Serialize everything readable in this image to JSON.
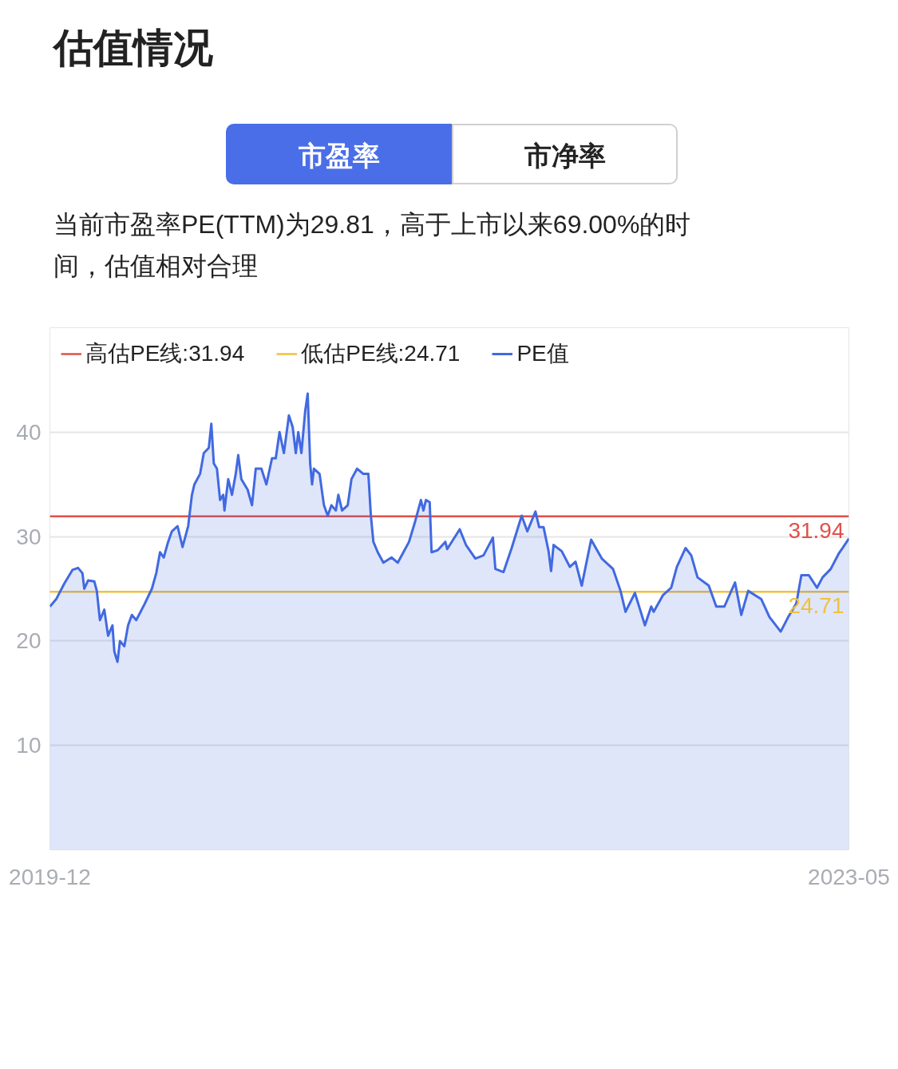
{
  "chart_data": {
    "type": "area",
    "title": "估值情况",
    "subtitle": "当前市盈率PE(TTM)为29.81，高于上市以来69.00%的时间，估值相对合理",
    "annotations": [
      "市盈率",
      "市净率",
      {
        "text": "31.94",
        "x": "2023-05-31",
        "y": 31.94
      },
      {
        "text": "24.71",
        "x": "2023-05-31",
        "y": 24.71
      }
    ],
    "x": [
      "2019-12-01",
      "2019-12-11",
      "2019-12-24",
      "2020-01-06",
      "2020-01-15",
      "2020-01-22",
      "2020-01-25",
      "2020-01-31",
      "2020-02-10",
      "2020-02-14",
      "2020-02-19",
      "2020-02-26",
      "2020-03-03",
      "2020-03-10",
      "2020-03-13",
      "2020-03-18",
      "2020-03-22",
      "2020-03-29",
      "2020-04-04",
      "2020-04-10",
      "2020-04-17",
      "2020-04-30",
      "2020-05-12",
      "2020-05-19",
      "2020-05-25",
      "2020-05-31",
      "2020-06-07",
      "2020-06-13",
      "2020-06-22",
      "2020-06-30",
      "2020-07-09",
      "2020-07-15",
      "2020-07-19",
      "2020-07-28",
      "2020-08-03",
      "2020-08-11",
      "2020-08-15",
      "2020-08-19",
      "2020-08-24",
      "2020-08-29",
      "2020-09-03",
      "2020-09-05",
      "2020-09-11",
      "2020-09-17",
      "2020-09-23",
      "2020-09-27",
      "2020-10-02",
      "2020-10-12",
      "2020-10-19",
      "2020-10-25",
      "2020-11-03",
      "2020-11-11",
      "2020-11-20",
      "2020-11-26",
      "2020-12-02",
      "2020-12-09",
      "2020-12-17",
      "2020-12-23",
      "2020-12-28",
      "2021-01-01",
      "2021-01-06",
      "2021-01-12",
      "2021-01-16",
      "2021-01-20",
      "2021-01-23",
      "2021-01-26",
      "2021-02-04",
      "2021-02-11",
      "2021-02-17",
      "2021-02-23",
      "2021-03-02",
      "2021-03-06",
      "2021-03-12",
      "2021-03-21",
      "2021-03-27",
      "2021-04-05",
      "2021-04-15",
      "2021-04-23",
      "2021-04-27",
      "2021-05-01",
      "2021-05-08",
      "2021-05-17",
      "2021-05-30",
      "2021-06-09",
      "2021-06-18",
      "2021-06-27",
      "2021-07-07",
      "2021-07-16",
      "2021-07-20",
      "2021-07-24",
      "2021-07-30",
      "2021-08-02",
      "2021-08-12",
      "2021-08-24",
      "2021-08-27",
      "2021-09-16",
      "2021-09-26",
      "2021-10-11",
      "2021-10-24",
      "2021-11-08",
      "2021-11-12",
      "2021-11-25",
      "2021-12-08",
      "2021-12-24",
      "2022-01-02",
      "2022-01-15",
      "2022-01-21",
      "2022-01-28",
      "2022-02-05",
      "2022-02-09",
      "2022-02-13",
      "2022-02-26",
      "2022-03-11",
      "2022-03-20",
      "2022-03-30",
      "2022-04-14",
      "2022-05-01",
      "2022-05-19",
      "2022-05-31",
      "2022-06-08",
      "2022-06-23",
      "2022-07-09",
      "2022-07-19",
      "2022-07-23",
      "2022-08-07",
      "2022-08-20",
      "2022-08-29",
      "2022-09-12",
      "2022-09-21",
      "2022-10-01",
      "2022-10-19",
      "2022-10-31",
      "2022-11-13",
      "2022-11-30",
      "2022-12-10",
      "2022-12-21",
      "2023-01-11",
      "2023-01-24",
      "2023-02-11",
      "2023-02-23",
      "2023-03-08",
      "2023-03-16",
      "2023-03-28",
      "2023-04-10",
      "2023-04-19",
      "2023-05-02",
      "2023-05-15",
      "2023-05-22",
      "2023-05-31"
    ],
    "series": [
      {
        "name": "PE值",
        "color": "#4169e1",
        "values": [
          23.3,
          24.0,
          25.5,
          26.8,
          27.0,
          26.5,
          25.0,
          25.8,
          25.7,
          24.8,
          22.0,
          23.0,
          20.5,
          21.5,
          19.0,
          18.0,
          20.0,
          19.5,
          21.5,
          22.5,
          22.0,
          23.5,
          25.0,
          26.5,
          28.5,
          28.0,
          29.5,
          30.5,
          31.0,
          29.0,
          31.0,
          34.0,
          35.0,
          36.0,
          38.0,
          38.5,
          40.8,
          37.0,
          36.5,
          33.5,
          34.0,
          32.5,
          35.5,
          34.0,
          36.0,
          37.8,
          35.5,
          34.5,
          33.0,
          36.5,
          36.5,
          35.0,
          37.5,
          37.5,
          40.0,
          38.0,
          41.6,
          40.5,
          38.0,
          40.0,
          38.0,
          42.0,
          43.7,
          37.0,
          35.0,
          36.5,
          36.0,
          33.0,
          32.0,
          33.0,
          32.5,
          34.0,
          32.5,
          33.0,
          35.5,
          36.5,
          36.0,
          36.0,
          32.0,
          29.5,
          28.5,
          27.5,
          28.0,
          27.5,
          28.5,
          29.5,
          31.5,
          33.5,
          32.5,
          33.5,
          33.3,
          28.5,
          28.7,
          29.5,
          28.8,
          30.7,
          29.2,
          27.9,
          28.2,
          29.9,
          26.9,
          26.6,
          28.9,
          32.0,
          30.5,
          32.4,
          30.9,
          30.9,
          28.6,
          26.7,
          29.2,
          28.6,
          27.1,
          27.6,
          25.3,
          29.7,
          27.9,
          26.9,
          24.8,
          22.8,
          24.6,
          21.5,
          23.3,
          22.8,
          24.4,
          25.1,
          27.1,
          28.9,
          28.2,
          26.1,
          25.3,
          23.3,
          23.3,
          25.6,
          22.5,
          24.8,
          24.0,
          22.3,
          20.9,
          22.3,
          23.6,
          26.3,
          26.3,
          25.1,
          26.1,
          26.9,
          28.4,
          29.0,
          29.81
        ]
      }
    ],
    "ref_lines": [
      {
        "axis": "y",
        "value": 31.94,
        "label": "高估PE线:31.94",
        "color": "#e0514a"
      },
      {
        "axis": "y",
        "value": 24.71,
        "label": "低估PE线:24.71",
        "color": "#f0c040"
      }
    ],
    "xlim": [
      "2019-12-01",
      "2023-05-31"
    ],
    "xticks": [
      {
        "value": "2019-12-01",
        "label": "2019-12"
      },
      {
        "value": "2023-05-31",
        "label": "2023-05"
      }
    ],
    "ylim": [
      0,
      50
    ],
    "yticks": [
      10,
      20,
      30,
      40
    ],
    "grid": "y",
    "legend": "top left",
    "marker": "none",
    "line_style": "solid"
  }
}
